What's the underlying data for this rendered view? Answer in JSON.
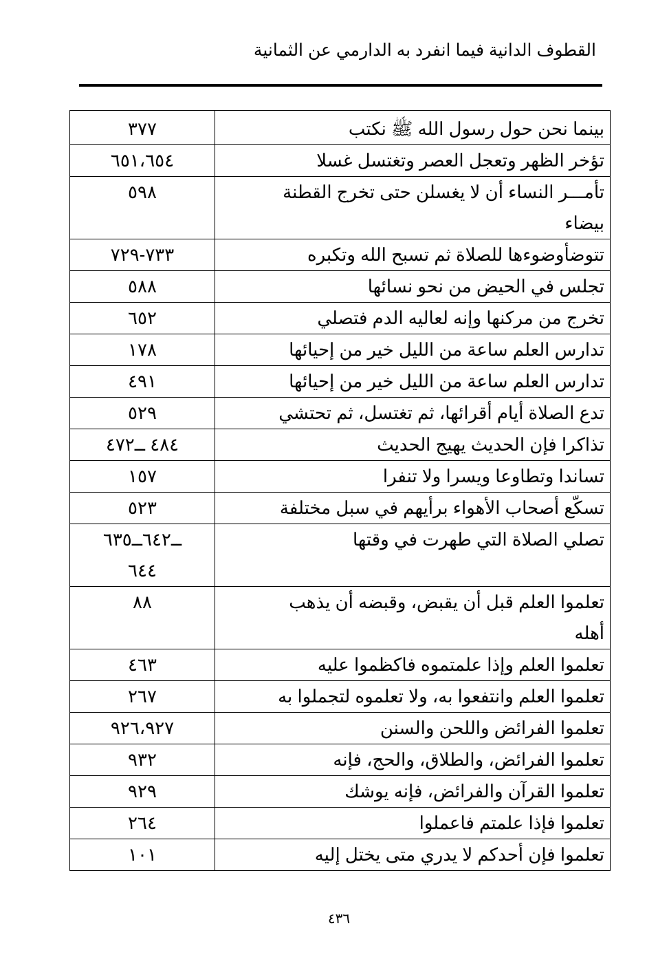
{
  "header": {
    "title": "القطوف الدانية فيما انفرد به الدارمي عن الثمانية"
  },
  "rows": [
    {
      "text": "بينما نحن حول رسول الله ﷺ نكتب",
      "pages": "٣٧٧"
    },
    {
      "text": "تؤخر الظهر وتعجل العصر وتغتسل غسلا",
      "pages": "٦٥١،٦٥٤"
    },
    {
      "text": "تأمـــر النساء أن لا يغسلن حتى تخرج القطنة\nبيضاء",
      "pages": "٥٩٨"
    },
    {
      "text": "تتوضأوضوءها للصلاة ثم تسبح الله وتكبره",
      "pages": "٧٣٣-٧٢٩"
    },
    {
      "text": "تجلس في الحيض من نحو نسائها",
      "pages": "٥٨٨"
    },
    {
      "text": "تخرج من مركنها وإنه لعاليه الدم فتصلي",
      "pages": "٦٥٢"
    },
    {
      "text": "تدارس العلم ساعة من الليل خير من إحيائها",
      "pages": "١٧٨"
    },
    {
      "text": "تدارس العلم ساعة من الليل خير من إحيائها",
      "pages": "٤٩١"
    },
    {
      "text": "تدع الصلاة أيام أقرائها، ثم تغتسل، ثم تحتشي",
      "pages": "٥٢٩"
    },
    {
      "text": "تذاكرا فإن الحديث يهيج الحديث",
      "pages": "٤٨٤ ــ٤٧٢"
    },
    {
      "text": "تساندا وتطاوعا ويسرا ولا تنفرا",
      "pages": "١٥٧"
    },
    {
      "text": "تسكّع أصحاب الأهواء برأيهم في سبل مختلفة",
      "pages": "٥٢٣"
    },
    {
      "text": "تصلي الصلاة التي طهرت في وقتها",
      "pages": "ــ٦٤٢ــ٦٣٥\n٦٤٤"
    },
    {
      "text": "تعلموا العلم قبل أن يقبض، وقبضه أن يذهب\nأهله",
      "pages": "٨٨"
    },
    {
      "text": "تعلموا العلم وإذا علمتموه فاكظموا عليه",
      "pages": "٤٦٣"
    },
    {
      "text": "تعلموا العلم وانتفعوا به، ولا تعلموه لتجملوا به",
      "pages": "٢٦٧"
    },
    {
      "text": "تعلموا الفرائض واللحن والسنن",
      "pages": "٩٢٦،٩٢٧"
    },
    {
      "text": "تعلموا الفرائض، والطلاق، والحج، فإنه",
      "pages": "٩٣٢"
    },
    {
      "text": "تعلموا القرآن والفرائض، فإنه يوشك",
      "pages": "٩٢٩"
    },
    {
      "text": "تعلموا فإذا علمتم فاعملوا",
      "pages": "٢٦٤"
    },
    {
      "text": "تعلموا فإن أحدكم لا يدري متى يختل إليه",
      "pages": "١٠١"
    }
  ],
  "footer": {
    "page_number": "٤٣٦"
  }
}
